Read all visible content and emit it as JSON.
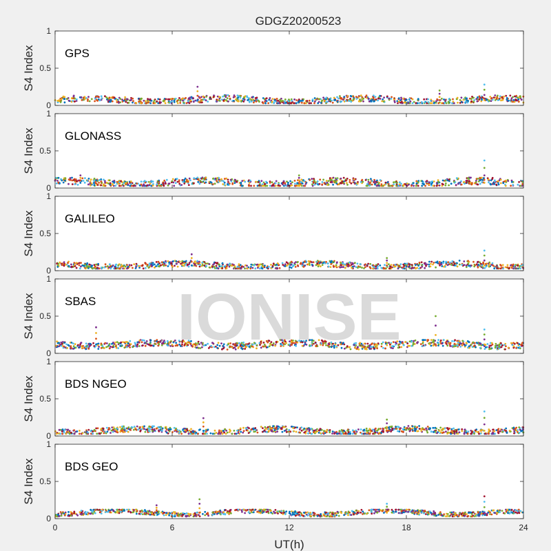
{
  "chart_data": {
    "type": "scatter",
    "title": "GDGZ20200523",
    "xlabel": "UT(h)",
    "ylabel": "S4 Index",
    "xlim": [
      0,
      24
    ],
    "ylim": [
      0,
      1
    ],
    "x_ticks": [
      "0",
      "6",
      "12",
      "18",
      "24"
    ],
    "y_ticks": [
      "0",
      "0.5",
      "1"
    ],
    "grid": false,
    "watermark": "IONISE",
    "series_colors": [
      "#0072bd",
      "#d95319",
      "#edb120",
      "#7e2f8e",
      "#77ac30",
      "#4dbeee",
      "#a2142f"
    ],
    "panels": [
      {
        "label": "GPS",
        "baseline": 0.07,
        "typical_range": [
          0.03,
          0.15
        ],
        "peaks": [
          {
            "x": 7.3,
            "y": 0.25
          },
          {
            "x": 19.7,
            "y": 0.2
          },
          {
            "x": 22.0,
            "y": 0.28
          }
        ]
      },
      {
        "label": "GLONASS",
        "baseline": 0.07,
        "typical_range": [
          0.03,
          0.17
        ],
        "peaks": [
          {
            "x": 1.3,
            "y": 0.17
          },
          {
            "x": 12.5,
            "y": 0.17
          },
          {
            "x": 22.0,
            "y": 0.37
          }
        ]
      },
      {
        "label": "GALILEO",
        "baseline": 0.07,
        "typical_range": [
          0.03,
          0.15
        ],
        "peaks": [
          {
            "x": 7.0,
            "y": 0.22
          },
          {
            "x": 17.0,
            "y": 0.17
          },
          {
            "x": 22.0,
            "y": 0.27
          }
        ]
      },
      {
        "label": "SBAS",
        "baseline": 0.12,
        "typical_range": [
          0.05,
          0.18
        ],
        "peaks": [
          {
            "x": 2.1,
            "y": 0.35
          },
          {
            "x": 19.5,
            "y": 0.5
          },
          {
            "x": 22.0,
            "y": 0.32
          }
        ]
      },
      {
        "label": "BDS NGEO",
        "baseline": 0.07,
        "typical_range": [
          0.03,
          0.15
        ],
        "peaks": [
          {
            "x": 7.6,
            "y": 0.24
          },
          {
            "x": 17.0,
            "y": 0.22
          },
          {
            "x": 22.0,
            "y": 0.33
          }
        ]
      },
      {
        "label": "BDS GEO",
        "baseline": 0.08,
        "typical_range": [
          0.03,
          0.12
        ],
        "peaks": [
          {
            "x": 5.2,
            "y": 0.18
          },
          {
            "x": 7.4,
            "y": 0.26
          },
          {
            "x": 17.0,
            "y": 0.2
          },
          {
            "x": 22.0,
            "y": 0.3
          }
        ]
      }
    ]
  }
}
